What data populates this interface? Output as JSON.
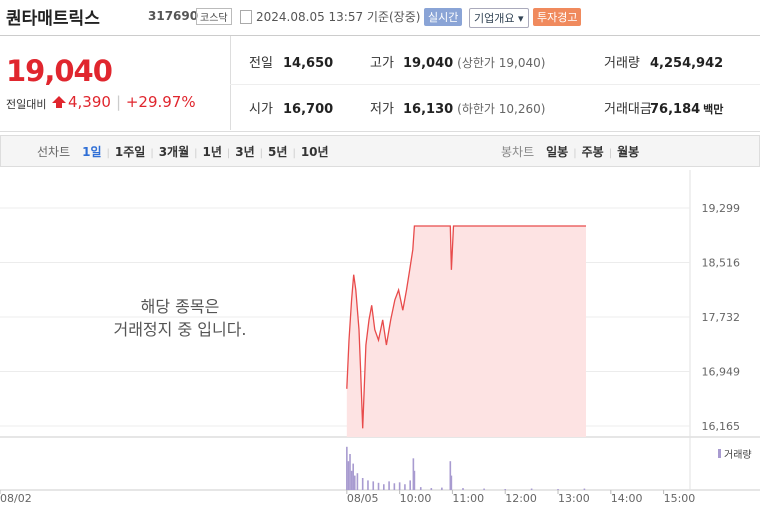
{
  "header": {
    "name": "퀀타매트릭스",
    "code": "317690",
    "market": "코스닥",
    "timestamp": "2024.08.05 13:57 기준(장중)",
    "buttons": [
      "실시간",
      "기업개요",
      "투자경고"
    ]
  },
  "summary": {
    "price": "19,040",
    "change_label": "전일대비",
    "change": "4,390",
    "rate": "+29.97%"
  },
  "stats": [
    [
      {
        "label": "전일",
        "value": "14,650"
      },
      {
        "label": "고가",
        "value": "19,040",
        "note": "(상한가 19,040)"
      },
      {
        "label": "거래량",
        "value": "4,254,942"
      }
    ],
    [
      {
        "label": "시가",
        "value": "16,700"
      },
      {
        "label": "저가",
        "value": "16,130",
        "note": "(하한가 10,260)"
      },
      {
        "label": "거래대금",
        "value": "76,184",
        "unit": "백만"
      }
    ]
  ],
  "toolbar": {
    "line_chart": "선차트",
    "periods": [
      "1일",
      "1주일",
      "3개월",
      "1년",
      "3년",
      "5년",
      "10년"
    ],
    "selected": 0,
    "candle_chart": "봉차트",
    "candle_periods": [
      "일봉",
      "주봉",
      "월봉"
    ]
  },
  "chart_data": {
    "type": "line",
    "message": [
      "해당 종목은",
      "거래정지 중 입니다."
    ],
    "color": "#e84b4b",
    "fill_color": "#fde3e3",
    "x": [
      9.0,
      9.04,
      9.09,
      9.13,
      9.17,
      9.23,
      9.26,
      9.3,
      9.36,
      9.42,
      9.47,
      9.53,
      9.6,
      9.68,
      9.75,
      9.83,
      9.91,
      9.98,
      10.06,
      10.13,
      10.19,
      10.25,
      10.28,
      10.96,
      10.98,
      11.02,
      13.53
    ],
    "values": [
      16700,
      17400,
      17980,
      18340,
      18120,
      17550,
      16970,
      16130,
      17330,
      17690,
      17900,
      17550,
      17400,
      17690,
      17330,
      17690,
      17980,
      18120,
      17830,
      18120,
      18410,
      18700,
      19040,
      19040,
      18410,
      19040,
      19040
    ],
    "xlim": [
      2.43,
      15.5
    ],
    "ylim": [
      16007,
      19702
    ],
    "xticks": [
      {
        "value": 2.43,
        "label": "08/02"
      },
      {
        "value": 9,
        "label": "08/05"
      },
      {
        "value": 10,
        "label": "10:00"
      },
      {
        "value": 11,
        "label": "11:00"
      },
      {
        "value": 12,
        "label": "12:00"
      },
      {
        "value": 13,
        "label": "13:00"
      },
      {
        "value": 14,
        "label": "14:00"
      },
      {
        "value": 15,
        "label": "15:00"
      }
    ],
    "yticks": [
      {
        "value": 19299,
        "label": "19,299"
      },
      {
        "value": 18516,
        "label": "18,516"
      },
      {
        "value": 17732,
        "label": "17,732"
      },
      {
        "value": 16949,
        "label": "16,949"
      },
      {
        "value": 16165,
        "label": "16,165"
      }
    ],
    "volume": {
      "name": "거래량",
      "color": "#a89bd0",
      "ylim": [
        0,
        100
      ],
      "x": [
        9.0,
        9.03,
        9.06,
        9.09,
        9.12,
        9.15,
        9.2,
        9.3,
        9.4,
        9.5,
        9.6,
        9.7,
        9.8,
        9.9,
        10.0,
        10.1,
        10.2,
        10.26,
        10.28,
        10.4,
        10.6,
        10.8,
        10.96,
        10.98,
        11.2,
        11.6,
        12.0,
        12.5,
        13.0,
        13.5
      ],
      "values": [
        90,
        60,
        75,
        40,
        55,
        30,
        35,
        25,
        20,
        18,
        15,
        12,
        18,
        14,
        16,
        12,
        20,
        66,
        40,
        6,
        4,
        5,
        60,
        30,
        4,
        3,
        2,
        3,
        2,
        3
      ]
    }
  }
}
